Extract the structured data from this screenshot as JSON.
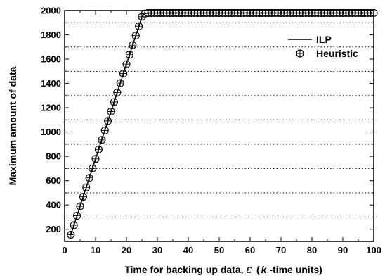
{
  "chart_data": {
    "type": "line",
    "title": "",
    "xlabel": "Time for backing up data, ",
    "xlabel_symbol": "ε",
    "xlabel_paren_open": "(",
    "xlabel_k": "k",
    "xlabel_units": " -time units)",
    "ylabel": "Maximum amount of data",
    "xlim": [
      0,
      100
    ],
    "ylim": [
      100,
      2000
    ],
    "xticks": [
      0,
      10,
      20,
      30,
      40,
      50,
      60,
      70,
      80,
      90,
      100
    ],
    "yticks": [
      200,
      400,
      600,
      800,
      1000,
      1200,
      1400,
      1600,
      1800,
      2000
    ],
    "ygrid": [
      300,
      500,
      700,
      900,
      1100,
      1300,
      1500,
      1700,
      1900
    ],
    "grid": "horizontal dotted",
    "legend_position": "top-right",
    "series": [
      {
        "name": "ILP",
        "style": "solid-line",
        "color": "#000000",
        "x": [
          2,
          3,
          4,
          5,
          6,
          7,
          8,
          9,
          10,
          11,
          12,
          13,
          14,
          15,
          16,
          17,
          18,
          19,
          20,
          21,
          22,
          23,
          24,
          25,
          26,
          27,
          100
        ],
        "y": [
          155,
          233,
          311,
          389,
          467,
          545,
          623,
          701,
          779,
          857,
          935,
          1013,
          1091,
          1169,
          1247,
          1325,
          1403,
          1481,
          1559,
          1637,
          1715,
          1793,
          1871,
          1949,
          1975,
          1980,
          1980
        ]
      },
      {
        "name": "Heuristic",
        "style": "circle-plus-markers",
        "color": "#000000",
        "x": [
          2,
          3,
          4,
          5,
          6,
          7,
          8,
          9,
          10,
          11,
          12,
          13,
          14,
          15,
          16,
          17,
          18,
          19,
          20,
          21,
          22,
          23,
          24,
          25,
          26,
          27,
          28,
          29,
          30,
          31,
          32,
          33,
          34,
          35,
          36,
          37,
          38,
          39,
          40,
          41,
          42,
          43,
          44,
          45,
          46,
          47,
          48,
          49,
          50,
          51,
          52,
          53,
          54,
          55,
          56,
          57,
          58,
          59,
          60,
          61,
          62,
          63,
          64,
          65,
          66,
          67,
          68,
          69,
          70,
          71,
          72,
          73,
          74,
          75,
          76,
          77,
          78,
          79,
          80,
          81,
          82,
          83,
          84,
          85,
          86,
          87,
          88,
          89,
          90,
          91,
          92,
          93,
          94,
          95,
          96,
          97,
          98,
          99,
          100
        ],
        "y": [
          155,
          233,
          311,
          389,
          467,
          545,
          623,
          701,
          779,
          857,
          935,
          1013,
          1091,
          1169,
          1247,
          1325,
          1403,
          1481,
          1559,
          1637,
          1715,
          1793,
          1871,
          1949,
          1975,
          1980,
          1980,
          1980,
          1980,
          1980,
          1980,
          1980,
          1980,
          1980,
          1980,
          1980,
          1980,
          1980,
          1980,
          1980,
          1980,
          1980,
          1980,
          1980,
          1980,
          1980,
          1980,
          1980,
          1980,
          1980,
          1980,
          1980,
          1980,
          1980,
          1980,
          1980,
          1980,
          1980,
          1980,
          1980,
          1980,
          1980,
          1980,
          1980,
          1980,
          1980,
          1980,
          1980,
          1980,
          1980,
          1980,
          1980,
          1980,
          1980,
          1980,
          1980,
          1980,
          1980,
          1980,
          1980,
          1980,
          1980,
          1980,
          1980,
          1980,
          1980,
          1980,
          1980,
          1980,
          1980,
          1980,
          1980,
          1980,
          1980,
          1980,
          1980,
          1980,
          1980,
          1980
        ]
      }
    ]
  }
}
